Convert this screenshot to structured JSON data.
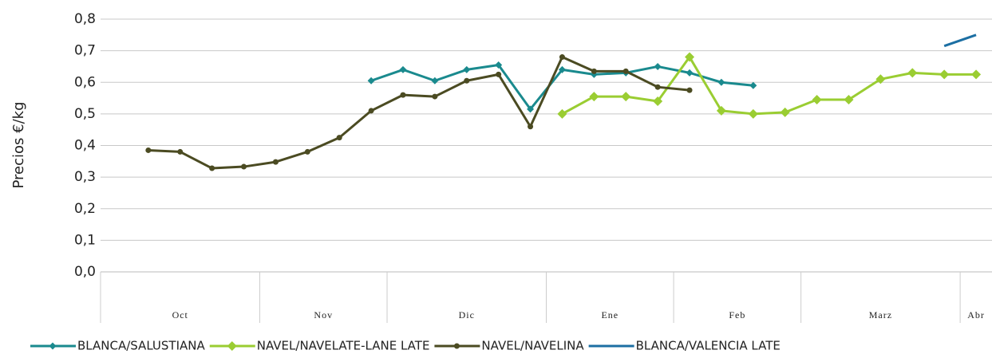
{
  "chart_data": {
    "type": "line",
    "y_label": "Precios €/kg",
    "ylim": [
      0,
      0.8
    ],
    "yticks": [
      {
        "value": 0,
        "label": "0,0"
      },
      {
        "value": 0.1,
        "label": "0,1"
      },
      {
        "value": 0.2,
        "label": "0,2"
      },
      {
        "value": 0.3,
        "label": "0,3"
      },
      {
        "value": 0.4,
        "label": "0,4"
      },
      {
        "value": 0.5,
        "label": "0,5"
      },
      {
        "value": 0.6,
        "label": "0,6"
      },
      {
        "value": 0.7,
        "label": "0,7"
      },
      {
        "value": 0.8,
        "label": "0,8"
      }
    ],
    "grid": true,
    "legend": "bottom",
    "categories": [
      null,
      null,
      null,
      null,
      null,
      null,
      null,
      null,
      null,
      null,
      null,
      null,
      null,
      null,
      null,
      null,
      null,
      null,
      null,
      null,
      null,
      null,
      null,
      null,
      null,
      null,
      null,
      null
    ],
    "x_groups": [
      {
        "label": "Oct",
        "weeks": 5
      },
      {
        "label": "Nov",
        "weeks": 4
      },
      {
        "label": "Dic",
        "weeks": 5
      },
      {
        "label": "Ene",
        "weeks": 4
      },
      {
        "label": "Feb",
        "weeks": 4
      },
      {
        "label": "Marz",
        "weeks": 5
      },
      {
        "label": "Abr",
        "weeks": 1
      }
    ],
    "series": [
      {
        "name": "BLANCA/SALUSTIANA",
        "color": "#1a8a8e",
        "marker": "diamond",
        "values": [
          null,
          null,
          null,
          null,
          null,
          null,
          null,
          null,
          0.605,
          0.64,
          0.605,
          0.64,
          0.655,
          0.515,
          0.64,
          0.625,
          0.63,
          0.65,
          0.63,
          0.6,
          0.59,
          null,
          null,
          null,
          null,
          null,
          null,
          null
        ]
      },
      {
        "name": "NAVEL/NAVELATE-LANE LATE",
        "color": "#9acd32",
        "marker": "diamond-large",
        "values": [
          null,
          null,
          null,
          null,
          null,
          null,
          null,
          null,
          null,
          null,
          null,
          null,
          null,
          null,
          0.5,
          0.555,
          0.555,
          0.54,
          0.68,
          0.51,
          0.5,
          0.505,
          0.545,
          0.545,
          0.61,
          0.63,
          0.625,
          0.625
        ]
      },
      {
        "name": "NAVEL/NAVELINA",
        "color": "#4b4b22",
        "marker": "circle",
        "values": [
          null,
          0.385,
          0.38,
          0.328,
          0.333,
          0.348,
          0.38,
          0.425,
          0.51,
          0.56,
          0.555,
          0.605,
          0.625,
          0.46,
          0.68,
          0.635,
          0.635,
          0.585,
          0.575,
          null,
          null,
          null,
          null,
          null,
          null,
          null,
          null,
          null
        ]
      },
      {
        "name": "BLANCA/VALENCIA LATE",
        "color": "#1c6fa3",
        "marker": "none",
        "values": [
          null,
          null,
          null,
          null,
          null,
          null,
          null,
          null,
          null,
          null,
          null,
          null,
          null,
          null,
          null,
          null,
          null,
          null,
          null,
          null,
          null,
          null,
          null,
          null,
          null,
          null,
          0.715,
          0.75
        ]
      }
    ]
  }
}
